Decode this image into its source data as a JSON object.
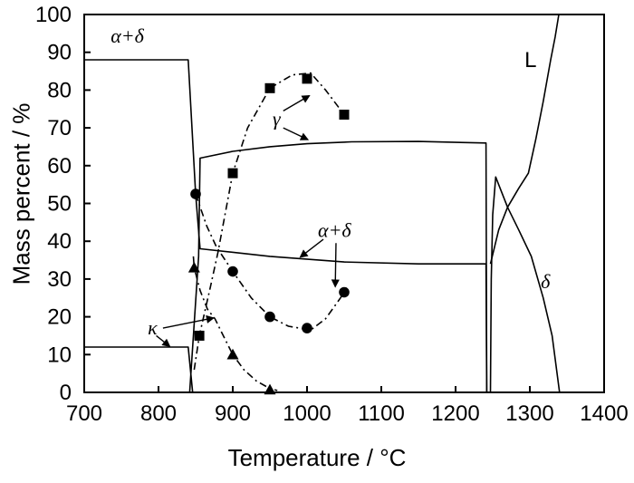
{
  "chart_data": {
    "type": "line",
    "title": "",
    "xlabel": "Temperature / °C",
    "ylabel": "Mass percent / %",
    "xlim": [
      700,
      1400
    ],
    "xtick_step": 100,
    "ylim": [
      0,
      100
    ],
    "ytick_step": 10,
    "grid": false,
    "legend": "none",
    "line_color": "#000000",
    "background": "#ffffff",
    "solid_curves": [
      {
        "name": "alpha-delta-calculated",
        "points": [
          [
            700,
            88
          ],
          [
            840,
            88
          ],
          [
            850,
            52.5
          ],
          [
            856,
            38
          ],
          [
            950,
            36
          ],
          [
            1050,
            34.5
          ],
          [
            1150,
            34
          ],
          [
            1241,
            34
          ],
          [
            1242,
            0
          ]
        ]
      },
      {
        "name": "kappa-calculated",
        "points": [
          [
            700,
            12
          ],
          [
            840,
            12
          ],
          [
            846,
            0
          ]
        ]
      },
      {
        "name": "gamma-calculated",
        "points": [
          [
            842,
            0
          ],
          [
            854,
            36
          ],
          [
            856,
            62
          ],
          [
            900,
            63.8
          ],
          [
            950,
            65
          ],
          [
            1000,
            65.8
          ],
          [
            1060,
            66.3
          ],
          [
            1150,
            66.4
          ],
          [
            1241,
            66
          ],
          [
            1242,
            0
          ]
        ]
      },
      {
        "name": "delta-calculated",
        "points": [
          [
            1247,
            0
          ],
          [
            1248,
            30
          ],
          [
            1250,
            47
          ],
          [
            1254,
            57
          ],
          [
            1270,
            49
          ],
          [
            1285,
            43
          ],
          [
            1302,
            36
          ],
          [
            1318,
            25
          ],
          [
            1330,
            15
          ],
          [
            1340,
            0
          ]
        ]
      },
      {
        "name": "liquid-calculated",
        "points": [
          [
            1247,
            34
          ],
          [
            1258,
            43
          ],
          [
            1270,
            49
          ],
          [
            1285,
            54
          ],
          [
            1298,
            58
          ],
          [
            1308,
            67
          ],
          [
            1318,
            77
          ],
          [
            1328,
            88
          ],
          [
            1334,
            94
          ],
          [
            1339,
            100
          ]
        ]
      }
    ],
    "measured_series": [
      {
        "name": "gamma-measured",
        "marker": "square",
        "points": [
          [
            855,
            15
          ],
          [
            900,
            58
          ],
          [
            950,
            80.5
          ],
          [
            1000,
            83
          ],
          [
            1050,
            73.5
          ]
        ],
        "trend": [
          [
            848,
            6
          ],
          [
            855,
            15
          ],
          [
            870,
            28
          ],
          [
            880,
            37
          ],
          [
            900,
            58
          ],
          [
            920,
            70
          ],
          [
            950,
            80.5
          ],
          [
            980,
            84
          ],
          [
            1005,
            84.5
          ],
          [
            1025,
            80
          ],
          [
            1050,
            73.5
          ]
        ]
      },
      {
        "name": "alpha-delta-measured",
        "marker": "circle",
        "points": [
          [
            850,
            52.5
          ],
          [
            900,
            32
          ],
          [
            950,
            20
          ],
          [
            1000,
            17
          ],
          [
            1050,
            26.5
          ]
        ],
        "trend": [
          [
            850,
            52.5
          ],
          [
            865,
            44
          ],
          [
            878,
            38.5
          ],
          [
            900,
            32
          ],
          [
            925,
            25
          ],
          [
            950,
            20
          ],
          [
            975,
            17.5
          ],
          [
            1005,
            16.5
          ],
          [
            1025,
            19.5
          ],
          [
            1045,
            25
          ],
          [
            1053,
            27.5
          ]
        ]
      },
      {
        "name": "kappa-measured",
        "marker": "triangle",
        "points": [
          [
            848,
            33
          ],
          [
            900,
            10
          ],
          [
            950,
            0.7
          ]
        ],
        "trend": [
          [
            847,
            36
          ],
          [
            848,
            33
          ],
          [
            856,
            27
          ],
          [
            866,
            22
          ],
          [
            876,
            19.5
          ],
          [
            886,
            15.5
          ],
          [
            900,
            10
          ],
          [
            915,
            6
          ],
          [
            932,
            3
          ],
          [
            950,
            1
          ],
          [
            960,
            0.5
          ]
        ]
      }
    ],
    "annotations": [
      {
        "text": "α+δ",
        "x": 758,
        "y": 94.5,
        "italic": true,
        "arrows": []
      },
      {
        "text": "γ",
        "x": 959,
        "y": 72.5,
        "italic": true,
        "arrows": [
          {
            "from": [
              968,
              74.5
            ],
            "to": [
              1003,
              78.5
            ]
          },
          {
            "from": [
              968,
              70
            ],
            "to": [
              1001,
              66.9
            ]
          }
        ]
      },
      {
        "text": "α+δ",
        "x": 1037,
        "y": 43,
        "italic": true,
        "arrows": [
          {
            "from": [
              1022,
              40.5
            ],
            "to": [
              991,
              35.8
            ]
          },
          {
            "from": [
              1039,
              39.5
            ],
            "to": [
              1038,
              28
            ]
          }
        ]
      },
      {
        "text": "κ",
        "x": 792,
        "y": 17.3,
        "italic": true,
        "arrows": [
          {
            "from": [
              806,
              17
            ],
            "to": [
              874,
              19.7
            ]
          },
          {
            "from": [
              797,
              15
            ],
            "to": [
              815,
              12.2
            ]
          }
        ]
      },
      {
        "text": "L",
        "x": 1301,
        "y": 88,
        "italic": false,
        "arrows": []
      },
      {
        "text": "δ",
        "x": 1321,
        "y": 29.5,
        "italic": true,
        "arrows": []
      }
    ]
  }
}
